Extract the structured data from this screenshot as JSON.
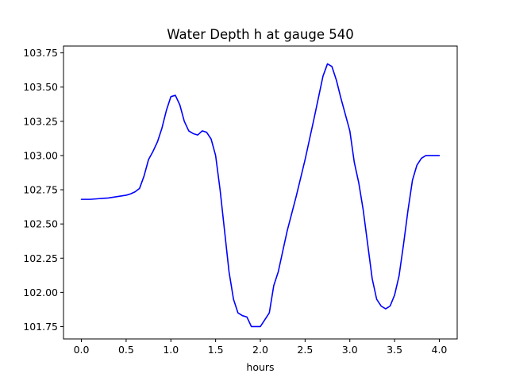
{
  "chart_data": {
    "type": "line",
    "title": "Water Depth h at gauge 540",
    "xlabel": "hours",
    "ylabel": "",
    "xlim": [
      -0.2,
      4.2
    ],
    "ylim": [
      101.66,
      103.8
    ],
    "xticks": [
      0.0,
      0.5,
      1.0,
      1.5,
      2.0,
      2.5,
      3.0,
      3.5,
      4.0
    ],
    "xtick_labels": [
      "0.0",
      "0.5",
      "1.0",
      "1.5",
      "2.0",
      "2.5",
      "3.0",
      "3.5",
      "4.0"
    ],
    "yticks": [
      101.75,
      102.0,
      102.25,
      102.5,
      102.75,
      103.0,
      103.25,
      103.5,
      103.75
    ],
    "ytick_labels": [
      "101.75",
      "102.00",
      "102.25",
      "102.50",
      "102.75",
      "103.00",
      "103.25",
      "103.50",
      "103.75"
    ],
    "grid": false,
    "legend": "none",
    "series": [
      {
        "color": "#0000ff",
        "x": [
          0.0,
          0.1,
          0.2,
          0.3,
          0.4,
          0.5,
          0.55,
          0.6,
          0.65,
          0.7,
          0.75,
          0.8,
          0.85,
          0.9,
          0.95,
          1.0,
          1.05,
          1.1,
          1.15,
          1.2,
          1.25,
          1.3,
          1.35,
          1.4,
          1.45,
          1.5,
          1.55,
          1.6,
          1.65,
          1.7,
          1.75,
          1.8,
          1.85,
          1.9,
          1.95,
          2.0,
          2.05,
          2.1,
          2.15,
          2.2,
          2.25,
          2.3,
          2.4,
          2.5,
          2.6,
          2.7,
          2.75,
          2.8,
          2.85,
          2.9,
          2.95,
          3.0,
          3.05,
          3.1,
          3.15,
          3.2,
          3.25,
          3.3,
          3.35,
          3.4,
          3.45,
          3.5,
          3.55,
          3.6,
          3.65,
          3.7,
          3.75,
          3.8,
          3.85,
          3.9,
          3.95,
          4.0
        ],
        "y": [
          102.68,
          102.68,
          102.685,
          102.69,
          102.7,
          102.71,
          102.72,
          102.735,
          102.76,
          102.85,
          102.97,
          103.03,
          103.1,
          103.2,
          103.33,
          103.43,
          103.44,
          103.37,
          103.25,
          103.18,
          103.16,
          103.15,
          103.18,
          103.17,
          103.12,
          103.0,
          102.75,
          102.45,
          102.15,
          101.95,
          101.85,
          101.83,
          101.82,
          101.75,
          101.75,
          101.75,
          101.8,
          101.85,
          102.05,
          102.15,
          102.3,
          102.45,
          102.7,
          102.97,
          103.27,
          103.58,
          103.67,
          103.65,
          103.55,
          103.42,
          103.3,
          103.18,
          102.95,
          102.8,
          102.6,
          102.35,
          102.1,
          101.95,
          101.9,
          101.88,
          101.9,
          101.98,
          102.12,
          102.35,
          102.6,
          102.82,
          102.93,
          102.98,
          103.0,
          103.0,
          103.0,
          103.0
        ]
      }
    ]
  }
}
